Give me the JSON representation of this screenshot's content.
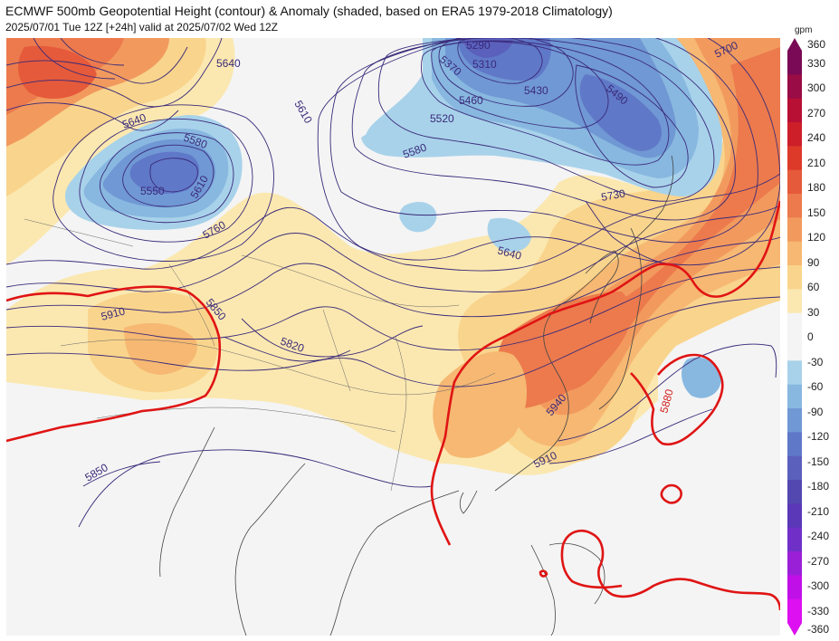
{
  "header": {
    "title": "ECMWF 500mb Geopotential Height (contour) & Anomaly (shaded, based on ERA5 1979-2018 Climatology)",
    "subtitle": "2025/07/01 Tue 12Z [+24h] valid at 2025/07/02 Wed 12Z"
  },
  "colorbar": {
    "unit": "gpm",
    "ticks": [
      "360",
      "330",
      "300",
      "270",
      "240",
      "210",
      "180",
      "150",
      "120",
      "90",
      "60",
      "30",
      "0",
      "-30",
      "-60",
      "-90",
      "-120",
      "-150",
      "-180",
      "-210",
      "-240",
      "-270",
      "-300",
      "-330",
      "-360"
    ],
    "colors": [
      "#7a0a55",
      "#9a0c45",
      "#b80f35",
      "#cc1f2a",
      "#dd3a2a",
      "#e55a3a",
      "#ec7a4c",
      "#f29a5e",
      "#f6b872",
      "#f9d48c",
      "#fbe8b0",
      "#f4f4f4",
      "#f4f4f4",
      "#a8d2ea",
      "#88b8e0",
      "#7098d4",
      "#6078c8",
      "#5a60bc",
      "#5348b0",
      "#5a38b8",
      "#7030c8",
      "#9a20d8",
      "#c010e8",
      "#dc10f0"
    ]
  },
  "map": {
    "contour_labels": [
      {
        "id": "5290",
        "text": "5290"
      },
      {
        "id": "5310",
        "text": "5310"
      },
      {
        "id": "5370",
        "text": "5370"
      },
      {
        "id": "5430",
        "text": "5430"
      },
      {
        "id": "5460",
        "text": "5460"
      },
      {
        "id": "5490",
        "text": "5490"
      },
      {
        "id": "5520",
        "text": "5520"
      },
      {
        "id": "5550",
        "text": "5550"
      },
      {
        "id": "5580a",
        "text": "5580"
      },
      {
        "id": "5580b",
        "text": "5580"
      },
      {
        "id": "5610a",
        "text": "5610"
      },
      {
        "id": "5610b",
        "text": "5610"
      },
      {
        "id": "5640a",
        "text": "5640"
      },
      {
        "id": "5640b",
        "text": "5640"
      },
      {
        "id": "5640c",
        "text": "5640"
      },
      {
        "id": "5700",
        "text": "5700"
      },
      {
        "id": "5730",
        "text": "5730"
      },
      {
        "id": "5760",
        "text": "5760"
      },
      {
        "id": "5820",
        "text": "5820"
      },
      {
        "id": "5850a",
        "text": "5850"
      },
      {
        "id": "5850b",
        "text": "5850"
      },
      {
        "id": "5910a",
        "text": "5910"
      },
      {
        "id": "5910b",
        "text": "5910"
      },
      {
        "id": "5940",
        "text": "5940"
      },
      {
        "id": "5880",
        "text": "5880"
      }
    ]
  }
}
